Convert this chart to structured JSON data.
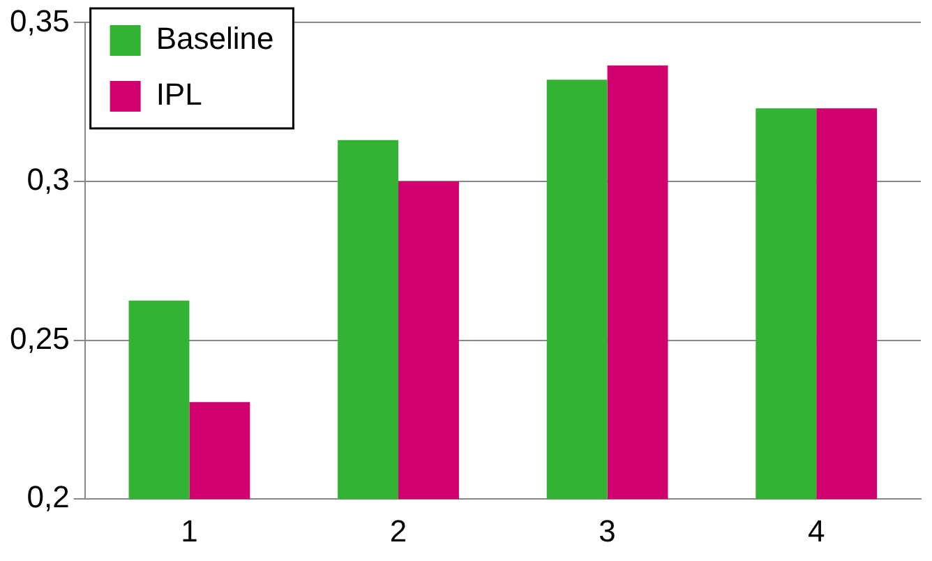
{
  "chart_data": {
    "type": "bar",
    "categories": [
      "1",
      "2",
      "3",
      "4"
    ],
    "series": [
      {
        "name": "Baseline",
        "color": "#33b233",
        "values": [
          0.2625,
          0.313,
          0.332,
          0.323
        ]
      },
      {
        "name": "IPL",
        "color": "#d1006f",
        "values": [
          0.2305,
          0.3,
          0.3365,
          0.323
        ]
      }
    ],
    "ylim": [
      0.2,
      0.35
    ],
    "yticks": [
      {
        "value": 0.2,
        "label": "0,2"
      },
      {
        "value": 0.25,
        "label": "0,25"
      },
      {
        "value": 0.3,
        "label": "0,3"
      },
      {
        "value": 0.35,
        "label": "0,35"
      }
    ],
    "grid": "y",
    "legend": "top left"
  }
}
